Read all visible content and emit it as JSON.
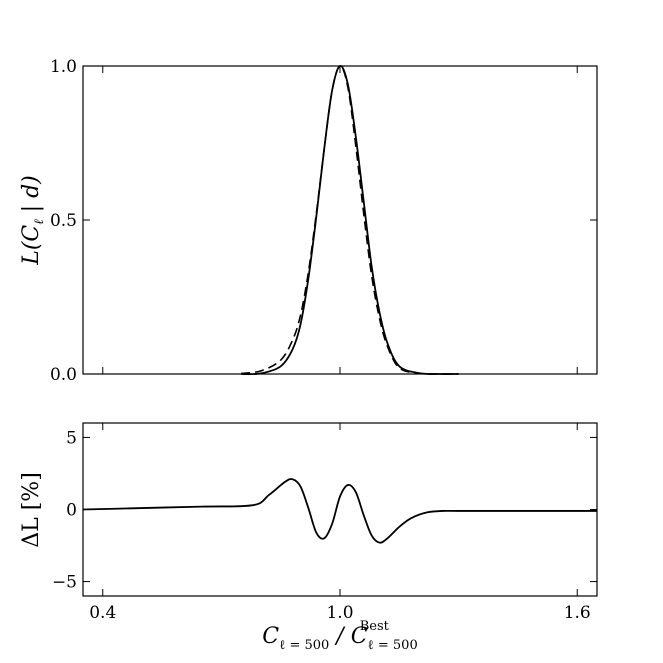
{
  "chart_data": [
    {
      "type": "line",
      "panel": "top",
      "xlim": [
        0.35,
        1.65
      ],
      "ylim": [
        0.0,
        1.0
      ],
      "xticks": [
        0.4,
        1.0,
        1.6
      ],
      "yticks": [
        0.0,
        0.5,
        1.0
      ],
      "ytick_labels": [
        "0.0",
        "0.5",
        "1.0"
      ],
      "ylabel": {
        "pre": "L(C",
        "sub": "ℓ",
        "post": " | d)"
      },
      "series": [
        {
          "style": "solid",
          "x": [
            0.75,
            0.8,
            0.85,
            0.88,
            0.9,
            0.92,
            0.94,
            0.96,
            0.98,
            1.0,
            1.02,
            1.04,
            1.06,
            1.08,
            1.1,
            1.12,
            1.15,
            1.2,
            1.25,
            1.3
          ],
          "y": [
            0.0,
            0.002,
            0.025,
            0.08,
            0.16,
            0.31,
            0.51,
            0.73,
            0.92,
            1.0,
            0.94,
            0.77,
            0.56,
            0.35,
            0.2,
            0.1,
            0.025,
            0.003,
            0.0,
            0.0
          ]
        },
        {
          "style": "dashed",
          "x": [
            0.75,
            0.8,
            0.85,
            0.88,
            0.9,
            0.92,
            0.94,
            0.96,
            0.98,
            1.0,
            1.02,
            1.04,
            1.06,
            1.08,
            1.1,
            1.12,
            1.15,
            1.2,
            1.25,
            1.3
          ],
          "y": [
            0.002,
            0.01,
            0.045,
            0.11,
            0.19,
            0.33,
            0.52,
            0.73,
            0.92,
            1.0,
            0.93,
            0.74,
            0.52,
            0.32,
            0.18,
            0.09,
            0.02,
            0.002,
            0.0,
            0.0
          ]
        }
      ]
    },
    {
      "type": "line",
      "panel": "bottom",
      "xlim": [
        0.35,
        1.65
      ],
      "ylim": [
        -6,
        6
      ],
      "xticks": [
        0.4,
        1.0,
        1.6
      ],
      "xtick_labels": [
        "0.4",
        "1.0",
        "1.6"
      ],
      "yticks": [
        -5,
        0,
        5
      ],
      "ytick_labels": [
        "−5",
        "0",
        "5"
      ],
      "ylabel": {
        "pre": "ΔL [%]"
      },
      "xlabel": {
        "pre": "C",
        "sub": "ℓ = 500",
        "mid": " / C",
        "sub2": "ℓ = 500",
        "sup2": "Best"
      },
      "series": [
        {
          "style": "solid",
          "x": [
            0.35,
            0.5,
            0.65,
            0.78,
            0.82,
            0.86,
            0.88,
            0.9,
            0.92,
            0.94,
            0.96,
            0.98,
            1.0,
            1.02,
            1.04,
            1.06,
            1.08,
            1.1,
            1.12,
            1.15,
            1.18,
            1.22,
            1.26,
            1.3,
            1.45,
            1.65
          ],
          "y": [
            0.0,
            0.1,
            0.2,
            0.3,
            1.0,
            1.9,
            2.1,
            1.6,
            0.1,
            -1.6,
            -2.0,
            -1.0,
            0.9,
            1.7,
            1.2,
            -0.4,
            -1.8,
            -2.3,
            -2.0,
            -1.2,
            -0.6,
            -0.2,
            -0.1,
            -0.1,
            -0.1,
            -0.1
          ]
        }
      ]
    }
  ]
}
